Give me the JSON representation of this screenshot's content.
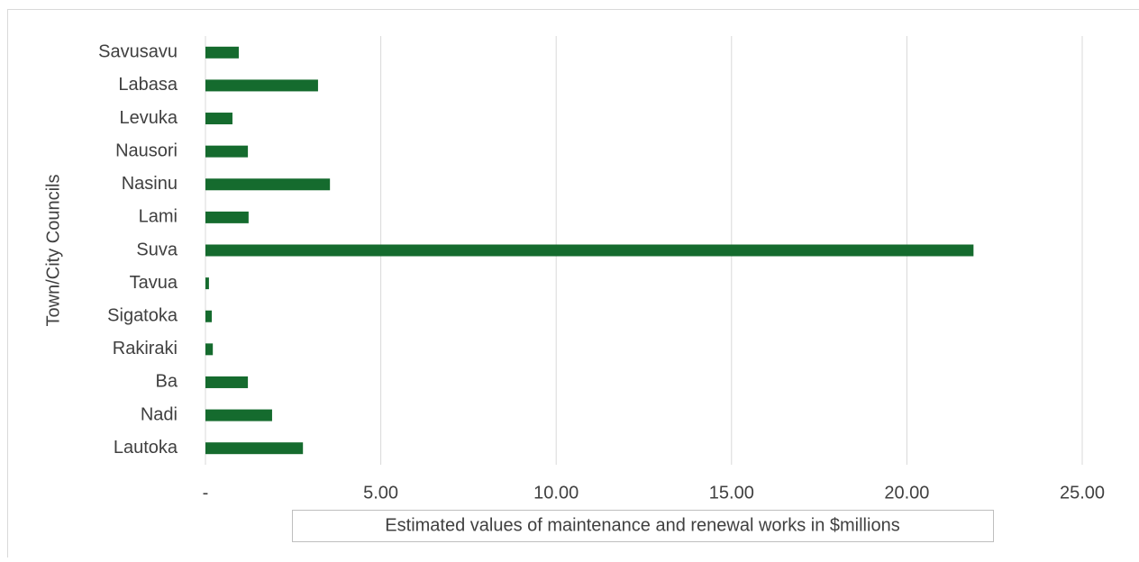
{
  "chart_data": {
    "type": "hbar",
    "xlabel": "Estimated values of maintenance and renewal works in $millions",
    "ylabel": "Town/City Councils",
    "categories": [
      "Savusavu",
      "Labasa",
      "Levuka",
      "Nausori",
      "Nasinu",
      "Lami",
      "Suva",
      "Tavua",
      "Sigatoka",
      "Rakiraki",
      "Ba",
      "Nadi",
      "Lautoka"
    ],
    "values": [
      0.95,
      3.21,
      0.77,
      1.21,
      3.55,
      1.23,
      21.9,
      0.1,
      0.18,
      0.21,
      1.21,
      1.9,
      2.78
    ],
    "color": "#156b2e",
    "xlim": [
      0,
      25
    ],
    "xticks": [
      {
        "value": 0,
        "label": "-"
      },
      {
        "value": 5,
        "label": "5.00"
      },
      {
        "value": 10,
        "label": "10.00"
      },
      {
        "value": 15,
        "label": "15.00"
      },
      {
        "value": 20,
        "label": "20.00"
      },
      {
        "value": 25,
        "label": "25.00"
      }
    ],
    "grid": true
  }
}
